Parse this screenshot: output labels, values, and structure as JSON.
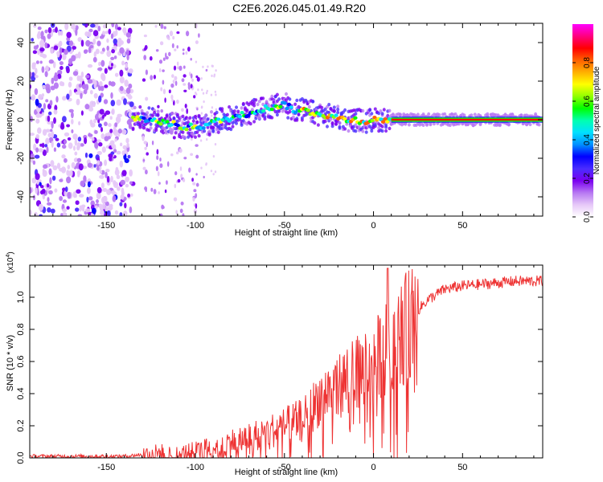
{
  "figure_title": "C2E6.2026.045.01.49.R20",
  "chart_data": [
    {
      "type": "heatmap",
      "name": "spectrogram",
      "xlabel": "Height of straight line (km)",
      "ylabel": "Frequency (Hz)",
      "xlim": [
        -193,
        95
      ],
      "ylim": [
        -50,
        50
      ],
      "xticks": [
        -150,
        -100,
        -50,
        0,
        50
      ],
      "yticks": [
        -40,
        -20,
        0,
        20,
        40
      ],
      "xtick_labels": [
        "-150",
        "-100",
        "-50",
        "0",
        "50"
      ],
      "ytick_labels": [
        "-40",
        "-20",
        "0",
        "20",
        "40"
      ],
      "ridge": {
        "x": [
          -135,
          -125,
          -115,
          -105,
          -95,
          -85,
          -75,
          -65,
          -55,
          -50,
          -45,
          -40,
          -35,
          -30,
          -25,
          -20,
          -15,
          -10,
          -5,
          0,
          5,
          10,
          20,
          40,
          60,
          93
        ],
        "y": [
          1,
          0,
          -2,
          -4,
          -3,
          0,
          2,
          5,
          7,
          8,
          5,
          5,
          4,
          3,
          2,
          1,
          0,
          0,
          -1,
          0,
          0,
          0,
          0,
          0,
          0,
          0
        ]
      },
      "colorbar": {
        "label": "Normalized spectral amplitude",
        "range": [
          0,
          1
        ],
        "ticks": [
          0.0,
          0.2,
          0.4,
          0.6,
          0.8
        ],
        "tick_labels": [
          "0.0",
          "0.2",
          "0.4",
          "0.6",
          "0.8"
        ],
        "colors": [
          "#ffffff",
          "#e6c8f8",
          "#b778f2",
          "#7a00f0",
          "#4a2cff",
          "#0000ff",
          "#0090ff",
          "#00e0ff",
          "#00ffb0",
          "#00ff00",
          "#90ff00",
          "#ffff00",
          "#ffb000",
          "#ff6000",
          "#ff0000",
          "#ff0080",
          "#ff00ff"
        ]
      }
    },
    {
      "type": "line",
      "name": "snr",
      "xlabel": "Height of straight line (km)",
      "ylabel": "SNR (10 * v/v)",
      "y_multiplier": "(x10",
      "y_multiplier_exp": "4",
      "y_multiplier_close": ")",
      "xlim": [
        -193,
        95
      ],
      "ylim": [
        0,
        1.2
      ],
      "xticks": [
        -150,
        -100,
        -50,
        0,
        50
      ],
      "yticks": [
        0.0,
        0.2,
        0.4,
        0.6,
        0.8,
        1.0
      ],
      "xtick_labels": [
        "-150",
        "-100",
        "-50",
        "0",
        "50"
      ],
      "ytick_labels": [
        "0.0",
        "0.2",
        "0.4",
        "0.6",
        "0.8",
        "1.0"
      ],
      "color": "#ee3333",
      "trend": {
        "x": [
          -193,
          -140,
          -130,
          -120,
          -110,
          -100,
          -90,
          -80,
          -70,
          -60,
          -50,
          -40,
          -35,
          -30,
          -20,
          -10,
          0,
          5,
          10,
          15,
          20,
          25,
          30,
          40,
          50,
          60,
          70,
          80,
          93
        ],
        "y": [
          0.01,
          0.01,
          0.02,
          0.03,
          0.02,
          0.04,
          0.07,
          0.1,
          0.13,
          0.16,
          0.2,
          0.24,
          0.3,
          0.38,
          0.45,
          0.52,
          0.6,
          0.66,
          0.72,
          0.78,
          0.84,
          0.92,
          0.98,
          1.05,
          1.07,
          1.08,
          1.09,
          1.1,
          1.1
        ]
      },
      "peak": {
        "x": 8,
        "y": 1.18
      }
    }
  ]
}
